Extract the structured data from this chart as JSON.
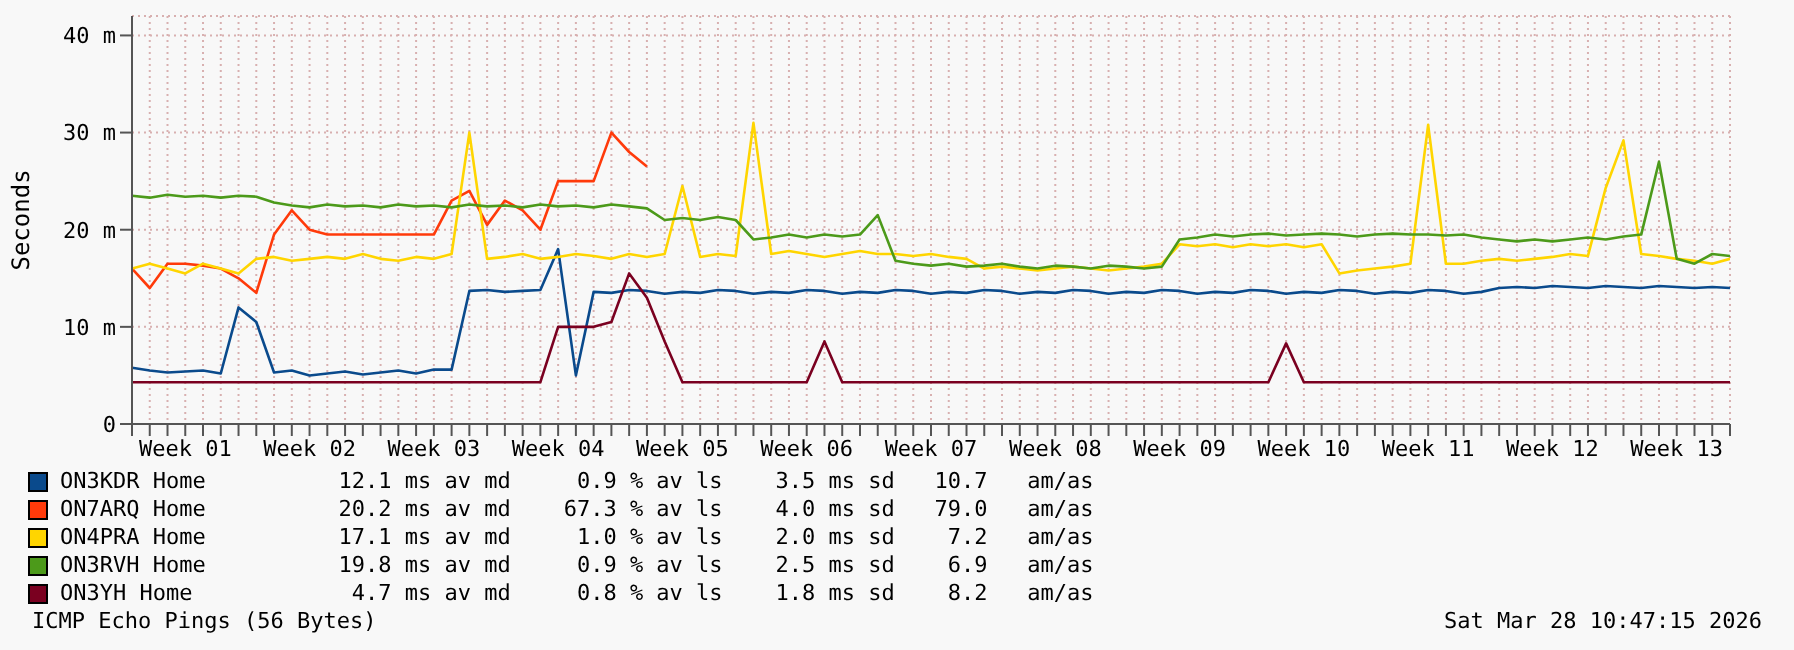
{
  "chart_data": {
    "type": "line",
    "ylabel": "Seconds",
    "legend": "bottom",
    "grid": true,
    "marker": "none",
    "categories": [
      null,
      null,
      null,
      "Week 01",
      null,
      null,
      null,
      null,
      null,
      null,
      "Week 02",
      null,
      null,
      null,
      null,
      null,
      null,
      "Week 03",
      null,
      null,
      null,
      null,
      null,
      null,
      "Week 04",
      null,
      null,
      null,
      null,
      null,
      null,
      "Week 05",
      null,
      null,
      null,
      null,
      null,
      null,
      "Week 06",
      null,
      null,
      null,
      null,
      null,
      null,
      "Week 07",
      null,
      null,
      null,
      null,
      null,
      null,
      "Week 08",
      null,
      null,
      null,
      null,
      null,
      null,
      "Week 09",
      null,
      null,
      null,
      null,
      null,
      null,
      "Week 10",
      null,
      null,
      null,
      null,
      null,
      null,
      "Week 11",
      null,
      null,
      null,
      null,
      null,
      null,
      "Week 12",
      null,
      null,
      null,
      null,
      null,
      null,
      "Week 13",
      null,
      null,
      null
    ],
    "ylim": [
      0,
      42
    ],
    "yticks": [
      0,
      {
        "value": 10,
        "label": "10 m"
      },
      {
        "value": 20,
        "label": "20 m"
      },
      {
        "value": 30,
        "label": "30 m"
      },
      {
        "value": 40,
        "label": "40 m"
      }
    ],
    "series": [
      {
        "name": "ON3KDR Home",
        "color": "#0a4a8c",
        "values": [
          5.8,
          5.5,
          5.3,
          5.4,
          5.5,
          5.2,
          12,
          10.5,
          5.3,
          5.5,
          5.0,
          5.2,
          5.4,
          5.1,
          5.3,
          5.5,
          5.2,
          5.6,
          5.6,
          13.7,
          13.8,
          13.6,
          13.7,
          13.8,
          18,
          5,
          13.6,
          13.5,
          13.8,
          13.7,
          13.4,
          13.6,
          13.5,
          13.8,
          13.7,
          13.4,
          13.6,
          13.5,
          13.8,
          13.7,
          13.4,
          13.6,
          13.5,
          13.8,
          13.7,
          13.4,
          13.6,
          13.5,
          13.8,
          13.7,
          13.4,
          13.6,
          13.5,
          13.8,
          13.7,
          13.4,
          13.6,
          13.5,
          13.8,
          13.7,
          13.4,
          13.6,
          13.5,
          13.8,
          13.7,
          13.4,
          13.6,
          13.5,
          13.8,
          13.7,
          13.4,
          13.6,
          13.5,
          13.8,
          13.7,
          13.4,
          13.6,
          14.0,
          14.1,
          14.0,
          14.2,
          14.1,
          14.0,
          14.2,
          14.1,
          14.0,
          14.2,
          14.1,
          14.0,
          14.1,
          14.0
        ]
      },
      {
        "name": "ON7ARQ Home",
        "color": "#ff3a0a",
        "values": [
          16,
          14,
          16.5,
          16.5,
          16.3,
          16,
          15,
          13.5,
          19.5,
          22,
          20,
          19.5,
          19.5,
          19.5,
          19.5,
          19.5,
          19.5,
          19.5,
          23,
          24,
          20.5,
          23,
          22,
          20,
          25,
          25,
          25,
          30,
          28,
          26.5,
          null,
          null,
          null,
          null,
          null,
          null,
          null,
          null,
          null,
          null,
          null,
          null,
          null,
          null,
          null,
          null,
          null,
          null,
          null,
          null,
          null,
          null,
          null,
          null,
          null,
          null,
          null,
          null,
          null,
          null,
          null,
          null,
          null,
          null,
          null,
          null,
          null,
          null,
          null,
          null,
          null,
          null,
          null,
          null,
          null,
          null,
          null,
          null,
          null,
          null,
          null,
          null,
          null,
          null,
          null,
          null,
          null,
          null,
          null,
          null,
          null
        ]
      },
      {
        "name": "ON4PRA Home",
        "color": "#ffd500",
        "values": [
          16,
          16.5,
          16,
          15.5,
          16.5,
          16,
          15.5,
          17,
          17.2,
          16.8,
          17,
          17.2,
          17,
          17.5,
          17,
          16.8,
          17.2,
          17,
          17.5,
          30,
          17,
          17.2,
          17.5,
          17,
          17.2,
          17.5,
          17.3,
          17,
          17.5,
          17.2,
          17.5,
          24.5,
          17.2,
          17.5,
          17.3,
          31,
          17.5,
          17.8,
          17.5,
          17.2,
          17.5,
          17.8,
          17.5,
          17.5,
          17.3,
          17.5,
          17.2,
          17,
          16,
          16.2,
          16,
          15.8,
          16,
          16.2,
          16,
          15.8,
          16,
          16.2,
          16.5,
          18.5,
          18.3,
          18.5,
          18.2,
          18.5,
          18.3,
          18.5,
          18.2,
          18.5,
          15.5,
          15.8,
          16,
          16.2,
          16.5,
          30.8,
          16.5,
          16.5,
          16.8,
          17,
          16.8,
          17,
          17.2,
          17.5,
          17.3,
          24.3,
          29.2,
          17.5,
          17.3,
          17,
          16.8,
          16.5,
          17
        ]
      },
      {
        "name": "ON3RVH Home",
        "color": "#4c9a1a",
        "values": [
          23.5,
          23.3,
          23.6,
          23.4,
          23.5,
          23.3,
          23.5,
          23.4,
          22.8,
          22.5,
          22.3,
          22.6,
          22.4,
          22.5,
          22.3,
          22.6,
          22.4,
          22.5,
          22.3,
          22.6,
          22.4,
          22.5,
          22.3,
          22.6,
          22.4,
          22.5,
          22.3,
          22.6,
          22.4,
          22.2,
          21,
          21.2,
          21,
          21.3,
          21,
          19,
          19.2,
          19.5,
          19.2,
          19.5,
          19.3,
          19.5,
          21.5,
          16.8,
          16.5,
          16.3,
          16.5,
          16.2,
          16.3,
          16.5,
          16.2,
          16,
          16.3,
          16.2,
          16,
          16.3,
          16.2,
          16,
          16.2,
          19,
          19.2,
          19.5,
          19.3,
          19.5,
          19.6,
          19.4,
          19.5,
          19.6,
          19.5,
          19.3,
          19.5,
          19.6,
          19.5,
          19.5,
          19.4,
          19.5,
          19.2,
          19,
          18.8,
          19,
          18.8,
          19,
          19.2,
          19,
          19.3,
          19.5,
          27,
          17,
          16.5,
          17.5,
          17.3
        ]
      },
      {
        "name": "ON3YH Home",
        "color": "#7a0020",
        "values": [
          4.3,
          4.3,
          4.3,
          4.3,
          4.3,
          4.3,
          4.3,
          4.3,
          4.3,
          4.3,
          4.3,
          4.3,
          4.3,
          4.3,
          4.3,
          4.3,
          4.3,
          4.3,
          4.3,
          4.3,
          4.3,
          4.3,
          4.3,
          4.3,
          10,
          10,
          10,
          10.5,
          15.5,
          13,
          8.5,
          4.3,
          4.3,
          4.3,
          4.3,
          4.3,
          4.3,
          4.3,
          4.3,
          8.5,
          4.3,
          4.3,
          4.3,
          4.3,
          4.3,
          4.3,
          4.3,
          4.3,
          4.3,
          4.3,
          4.3,
          4.3,
          4.3,
          4.3,
          4.3,
          4.3,
          4.3,
          4.3,
          4.3,
          4.3,
          4.3,
          4.3,
          4.3,
          4.3,
          4.3,
          8.3,
          4.3,
          4.3,
          4.3,
          4.3,
          4.3,
          4.3,
          4.3,
          4.3,
          4.3,
          4.3,
          4.3,
          4.3,
          4.3,
          4.3,
          4.3,
          4.3,
          4.3,
          4.3,
          4.3,
          4.3,
          4.3,
          4.3,
          4.3,
          4.3,
          4.3
        ]
      }
    ],
    "annotations": [
      "  12.1 ms av md     0.9 % av ls    3.5 ms sd   10.7   am/as",
      "  20.2 ms av md    67.3 % av ls    4.0 ms sd   79.0   am/as",
      "  17.1 ms av md     1.0 % av ls    2.0 ms sd    7.2   am/as",
      "  19.8 ms av md     0.9 % av ls    2.5 ms sd    6.9   am/as",
      "   4.7 ms av md     0.8 % av ls    1.8 ms sd    8.2   am/as",
      "ICMP Echo Pings (56 Bytes)",
      "Sat Mar 28 10:47:15 2026"
    ]
  }
}
